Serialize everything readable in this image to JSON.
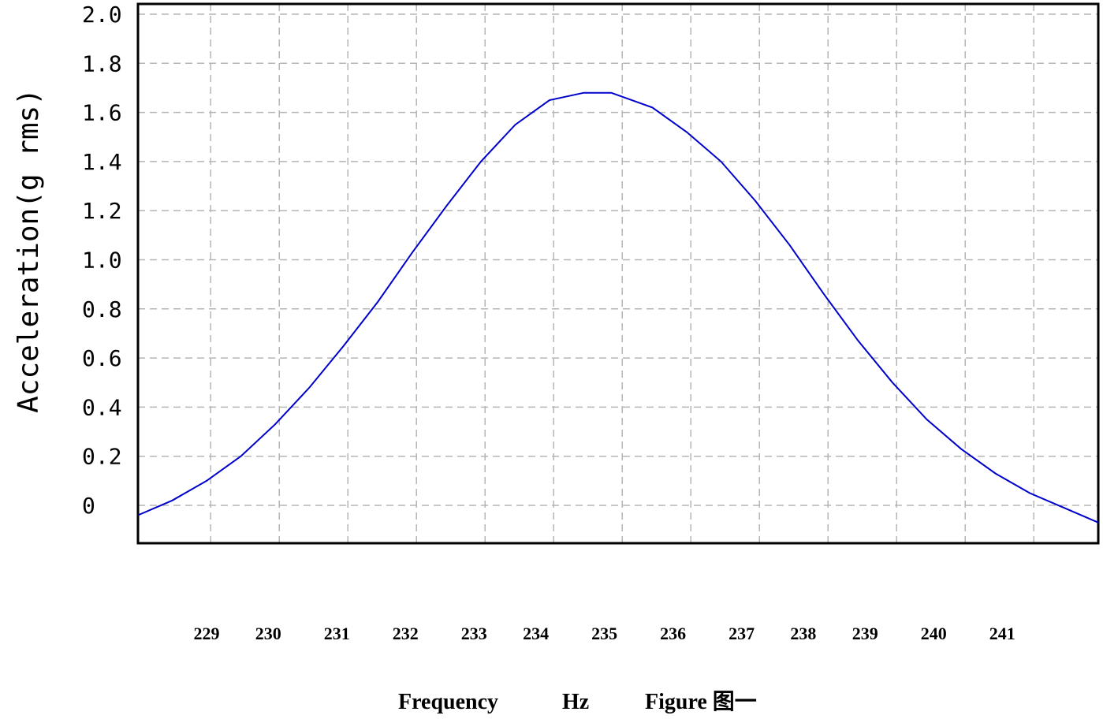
{
  "chart_data": {
    "type": "line",
    "title": "",
    "xlabel_parts": [
      "Frequency",
      "Hz",
      "Figure 图一"
    ],
    "ylabel": "Acceleration(g rms)",
    "xlim": [
      228.0,
      242.0
    ],
    "ylim": [
      -0.15,
      2.0
    ],
    "y_ticks": [
      "0",
      "0.2",
      "0.4",
      "0.6",
      "0.8",
      "1.0",
      "1.2",
      "1.4",
      "1.6",
      "1.8",
      "2.0"
    ],
    "y_tick_values": [
      0,
      0.2,
      0.4,
      0.6,
      0.8,
      1.0,
      1.2,
      1.4,
      1.6,
      1.8,
      2.0
    ],
    "x_tick_labels": [
      "229",
      "230",
      "231",
      "232",
      "233",
      "234",
      "235",
      "236",
      "237",
      "238",
      "239",
      "240",
      "241"
    ],
    "x_tick_label_values": [
      229.0,
      229.9,
      230.9,
      231.9,
      232.9,
      233.8,
      234.8,
      235.8,
      236.8,
      237.7,
      238.6,
      239.6,
      240.6
    ],
    "x_gridlines": [
      229.06,
      230.06,
      231.06,
      232.06,
      233.06,
      234.06,
      235.06,
      236.06,
      237.06,
      238.06,
      239.06,
      240.06,
      241.06
    ],
    "grid": true,
    "legend": "none",
    "series": [
      {
        "color": "#0000cc",
        "x": [
          228.0,
          228.5,
          229.0,
          229.5,
          230.0,
          230.5,
          231.0,
          231.5,
          232.0,
          232.5,
          233.0,
          233.5,
          234.0,
          234.5,
          234.9,
          235.0,
          235.5,
          236.0,
          236.5,
          237.0,
          237.5,
          238.0,
          238.5,
          239.0,
          239.5,
          240.0,
          240.5,
          241.0,
          241.5,
          242.0
        ],
        "y": [
          -0.04,
          0.02,
          0.1,
          0.2,
          0.33,
          0.48,
          0.65,
          0.83,
          1.03,
          1.22,
          1.4,
          1.55,
          1.65,
          1.68,
          1.68,
          1.67,
          1.62,
          1.52,
          1.4,
          1.24,
          1.06,
          0.86,
          0.67,
          0.5,
          0.35,
          0.23,
          0.13,
          0.05,
          -0.01,
          -0.07
        ]
      }
    ]
  }
}
